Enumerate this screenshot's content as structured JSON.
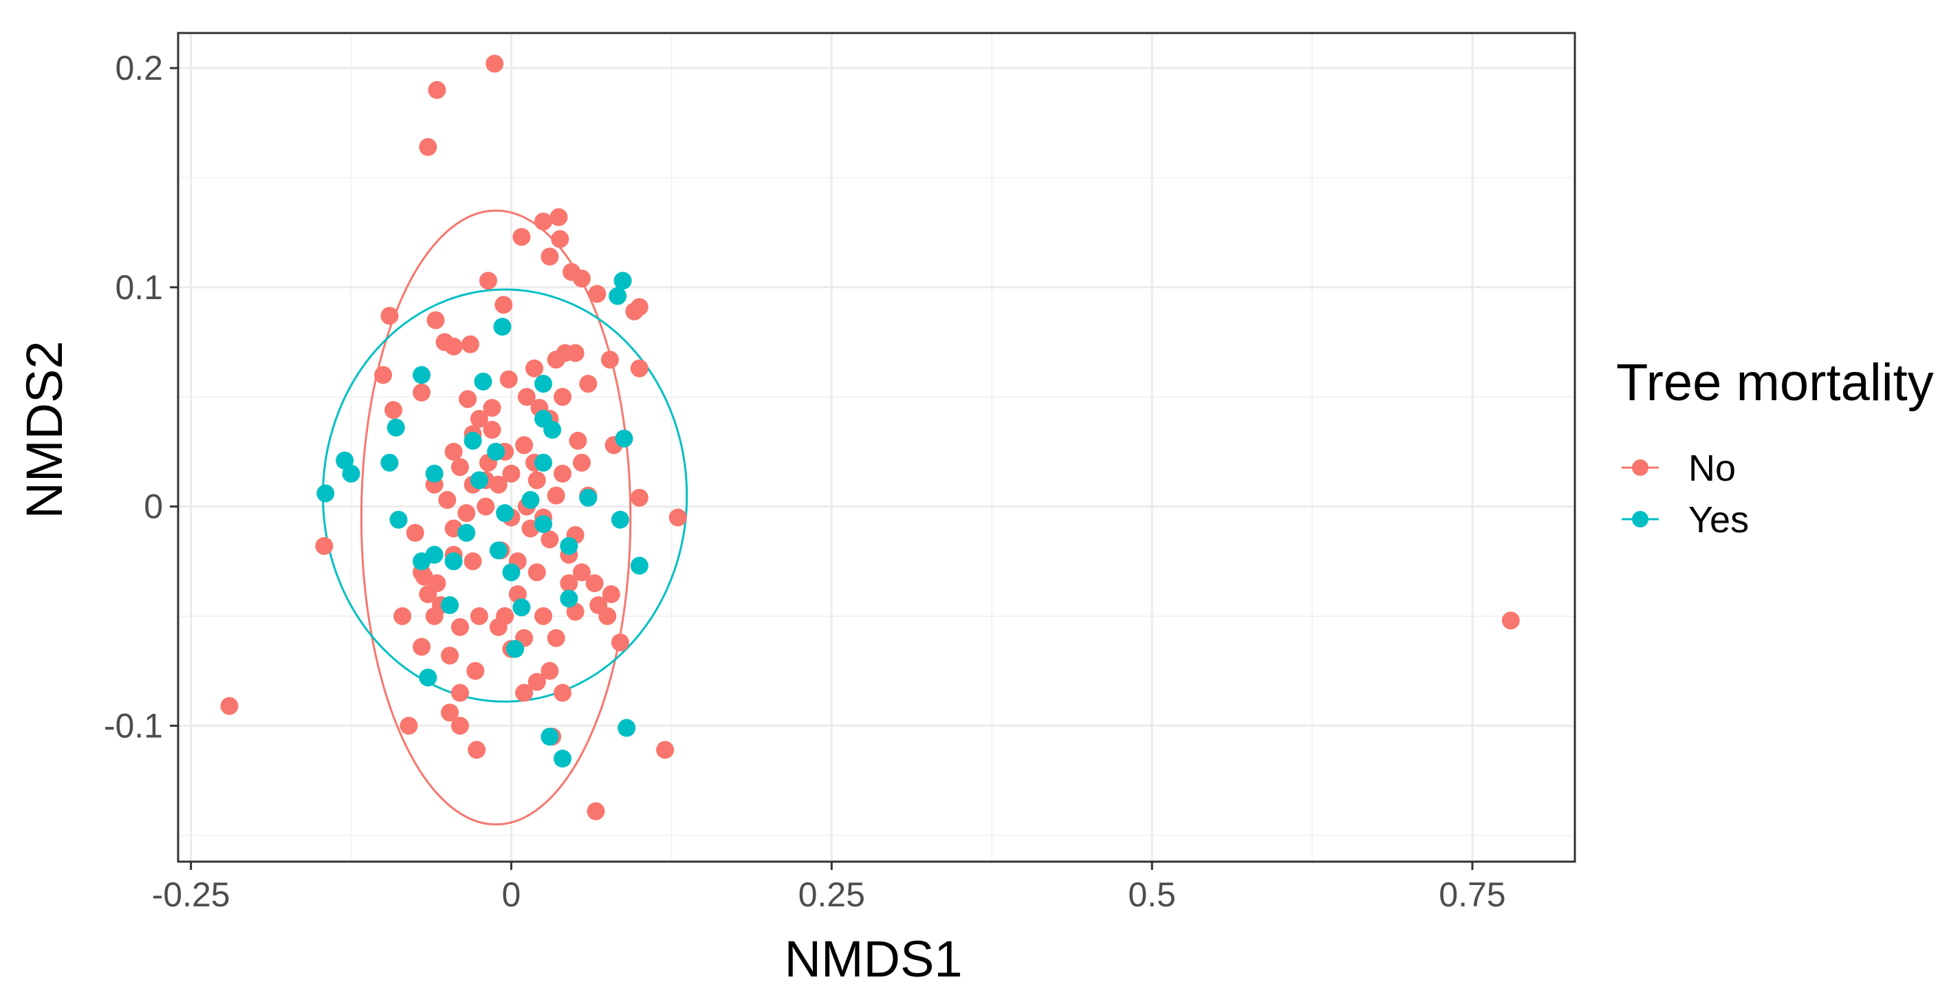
{
  "chart_data": {
    "type": "scatter",
    "title": "",
    "xlabel": "NMDS1",
    "ylabel": "NMDS2",
    "xlim": [
      -0.26,
      0.83
    ],
    "ylim": [
      -0.162,
      0.216
    ],
    "xticks": [
      -0.25,
      0,
      0.25,
      0.5,
      0.75
    ],
    "xtick_labels": [
      "-0.25",
      "0",
      "0.25",
      "0.5",
      "0.75"
    ],
    "yticks": [
      -0.1,
      0,
      0.1,
      0.2
    ],
    "ytick_labels": [
      "-0.1",
      "0",
      "0.1",
      "0.2"
    ],
    "grid": true,
    "legend": {
      "title": "Tree mortality",
      "position": "right",
      "entries": [
        "No",
        "Yes"
      ]
    },
    "ellipses": [
      {
        "series": "No",
        "cx": -0.012,
        "cy": -0.005,
        "rx": 0.105,
        "ry": 0.14
      },
      {
        "series": "Yes",
        "cx": -0.005,
        "cy": 0.005,
        "rx": 0.142,
        "ry": 0.094
      }
    ],
    "series": [
      {
        "name": "No",
        "color": "#F8766D",
        "points": [
          [
            -0.013,
            0.202
          ],
          [
            -0.058,
            0.19
          ],
          [
            -0.065,
            0.164
          ],
          [
            -0.22,
            -0.091
          ],
          [
            0.78,
            -0.052
          ],
          [
            0.066,
            -0.139
          ],
          [
            0.12,
            -0.111
          ],
          [
            0.032,
            -0.105
          ],
          [
            -0.027,
            -0.111
          ],
          [
            -0.08,
            -0.1
          ],
          [
            -0.04,
            -0.1
          ],
          [
            -0.048,
            -0.094
          ],
          [
            0.025,
            0.13
          ],
          [
            0.037,
            0.132
          ],
          [
            0.008,
            0.123
          ],
          [
            0.038,
            0.122
          ],
          [
            0.03,
            0.114
          ],
          [
            0.047,
            0.107
          ],
          [
            0.055,
            0.104
          ],
          [
            0.067,
            0.097
          ],
          [
            0.1,
            0.091
          ],
          [
            0.096,
            0.089
          ],
          [
            -0.006,
            0.092
          ],
          [
            -0.018,
            0.103
          ],
          [
            -0.095,
            0.087
          ],
          [
            -0.059,
            0.085
          ],
          [
            -0.052,
            0.075
          ],
          [
            -0.045,
            0.073
          ],
          [
            -0.032,
            0.074
          ],
          [
            -0.1,
            0.06
          ],
          [
            -0.07,
            0.052
          ],
          [
            -0.092,
            0.044
          ],
          [
            -0.034,
            0.049
          ],
          [
            0.042,
            0.07
          ],
          [
            0.05,
            0.07
          ],
          [
            0.035,
            0.067
          ],
          [
            0.018,
            0.063
          ],
          [
            0.077,
            0.067
          ],
          [
            0.1,
            0.063
          ],
          [
            0.06,
            0.056
          ],
          [
            0.04,
            0.05
          ],
          [
            0.012,
            0.05
          ],
          [
            -0.002,
            0.058
          ],
          [
            -0.015,
            0.045
          ],
          [
            -0.025,
            0.04
          ],
          [
            0.022,
            0.045
          ],
          [
            0.052,
            0.03
          ],
          [
            0.08,
            0.028
          ],
          [
            0.1,
            0.004
          ],
          [
            0.13,
            -0.005
          ],
          [
            -0.146,
            -0.018
          ],
          [
            -0.03,
            0.033
          ],
          [
            -0.045,
            0.025
          ],
          [
            -0.04,
            0.018
          ],
          [
            -0.018,
            0.02
          ],
          [
            -0.005,
            0.025
          ],
          [
            0.01,
            0.028
          ],
          [
            0.02,
            0.012
          ],
          [
            0.04,
            0.015
          ],
          [
            0.055,
            0.02
          ],
          [
            -0.06,
            0.01
          ],
          [
            -0.05,
            0.003
          ],
          [
            -0.02,
            0.0
          ],
          [
            0.0,
            -0.005
          ],
          [
            0.015,
            -0.01
          ],
          [
            0.03,
            -0.015
          ],
          [
            0.05,
            -0.013
          ],
          [
            0.06,
            0.005
          ],
          [
            -0.075,
            -0.012
          ],
          [
            -0.045,
            -0.022
          ],
          [
            -0.03,
            -0.025
          ],
          [
            -0.008,
            -0.02
          ],
          [
            0.02,
            -0.03
          ],
          [
            0.045,
            -0.022
          ],
          [
            0.065,
            -0.035
          ],
          [
            0.078,
            -0.04
          ],
          [
            -0.068,
            -0.032
          ],
          [
            -0.065,
            -0.04
          ],
          [
            -0.07,
            -0.03
          ],
          [
            -0.058,
            -0.035
          ],
          [
            -0.06,
            -0.05
          ],
          [
            -0.085,
            -0.05
          ],
          [
            -0.055,
            -0.045
          ],
          [
            -0.025,
            -0.05
          ],
          [
            -0.01,
            -0.055
          ],
          [
            0.005,
            -0.04
          ],
          [
            0.025,
            -0.05
          ],
          [
            0.035,
            -0.06
          ],
          [
            0.05,
            -0.048
          ],
          [
            0.068,
            -0.045
          ],
          [
            0.085,
            -0.062
          ],
          [
            -0.07,
            -0.064
          ],
          [
            -0.048,
            -0.068
          ],
          [
            -0.04,
            -0.085
          ],
          [
            -0.028,
            -0.075
          ],
          [
            0.01,
            -0.085
          ],
          [
            0.02,
            -0.08
          ],
          [
            0.03,
            -0.075
          ],
          [
            0.04,
            -0.085
          ],
          [
            0.0,
            -0.065
          ],
          [
            -0.005,
            -0.05
          ],
          [
            -0.035,
            -0.003
          ],
          [
            -0.01,
            0.01
          ],
          [
            0.012,
            0.0
          ],
          [
            0.025,
            -0.005
          ],
          [
            0.035,
            0.005
          ],
          [
            -0.02,
            0.012
          ],
          [
            -0.045,
            -0.01
          ],
          [
            0.018,
            0.02
          ],
          [
            0.005,
            -0.025
          ],
          [
            0.045,
            -0.035
          ],
          [
            0.03,
            0.04
          ],
          [
            -0.015,
            0.035
          ],
          [
            0.075,
            -0.05
          ],
          [
            -0.04,
            -0.055
          ],
          [
            0.01,
            -0.06
          ],
          [
            0.055,
            -0.03
          ],
          [
            -0.03,
            0.01
          ],
          [
            0.0,
            0.015
          ]
        ]
      },
      {
        "name": "Yes",
        "color": "#00BFC4",
        "points": [
          [
            0.087,
            0.103
          ],
          [
            0.083,
            0.096
          ],
          [
            -0.007,
            0.082
          ],
          [
            -0.07,
            0.06
          ],
          [
            -0.022,
            0.057
          ],
          [
            0.025,
            0.056
          ],
          [
            -0.13,
            0.021
          ],
          [
            -0.125,
            0.015
          ],
          [
            -0.145,
            0.006
          ],
          [
            -0.09,
            0.036
          ],
          [
            -0.095,
            0.02
          ],
          [
            -0.06,
            0.015
          ],
          [
            -0.03,
            0.03
          ],
          [
            0.025,
            0.04
          ],
          [
            0.032,
            0.035
          ],
          [
            0.088,
            0.031
          ],
          [
            -0.025,
            0.012
          ],
          [
            0.015,
            0.003
          ],
          [
            -0.005,
            -0.003
          ],
          [
            0.06,
            0.004
          ],
          [
            -0.088,
            -0.006
          ],
          [
            0.085,
            -0.006
          ],
          [
            -0.01,
            -0.02
          ],
          [
            0.025,
            -0.008
          ],
          [
            0.045,
            -0.018
          ],
          [
            -0.06,
            -0.022
          ],
          [
            -0.07,
            -0.025
          ],
          [
            -0.045,
            -0.025
          ],
          [
            0.1,
            -0.027
          ],
          [
            -0.048,
            -0.045
          ],
          [
            0.045,
            -0.042
          ],
          [
            0.008,
            -0.046
          ],
          [
            0.003,
            -0.065
          ],
          [
            -0.065,
            -0.078
          ],
          [
            0.09,
            -0.101
          ],
          [
            0.03,
            -0.105
          ],
          [
            0.04,
            -0.115
          ],
          [
            0.025,
            0.02
          ],
          [
            -0.012,
            0.025
          ],
          [
            0.0,
            -0.03
          ],
          [
            -0.035,
            -0.012
          ]
        ]
      }
    ]
  }
}
